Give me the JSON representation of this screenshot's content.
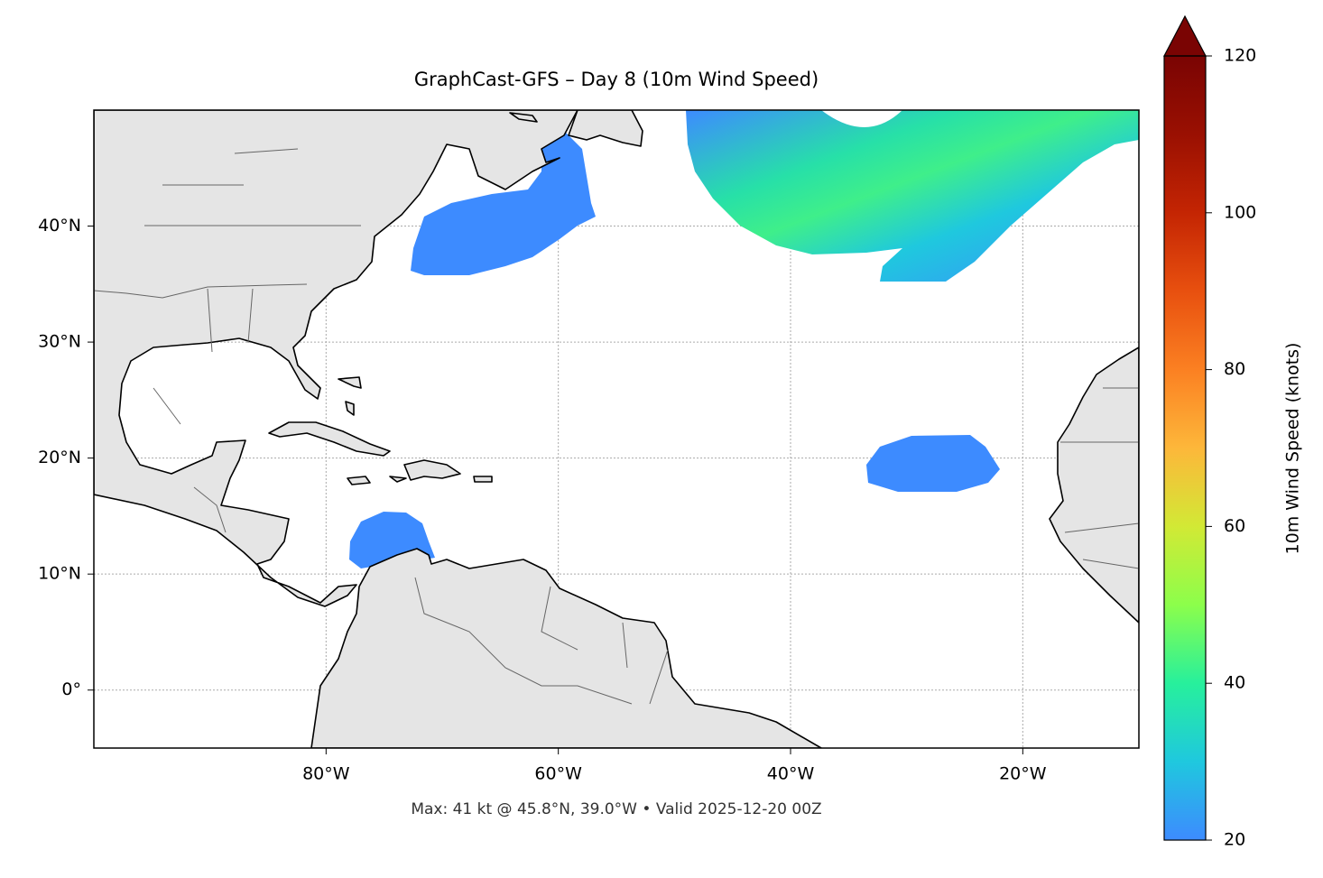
{
  "chart_data": {
    "type": "map",
    "title": "GraphCast-GFS – Day 8 (10m Wind Speed)",
    "footnote": "Max: 41 kt @ 45.8°N, 39.0°W • Valid 2025-12-20 00Z",
    "xlim": [
      -100,
      -10
    ],
    "ylim": [
      -5,
      50
    ],
    "xticks": [
      {
        "value": -80,
        "label": "80°W"
      },
      {
        "value": -60,
        "label": "60°W"
      },
      {
        "value": -40,
        "label": "40°W"
      },
      {
        "value": -20,
        "label": "20°W"
      }
    ],
    "yticks": [
      {
        "value": 0,
        "label": "0°"
      },
      {
        "value": 10,
        "label": "10°N"
      },
      {
        "value": 20,
        "label": "20°N"
      },
      {
        "value": 30,
        "label": "30°N"
      },
      {
        "value": 40,
        "label": "40°N"
      }
    ],
    "grid": true,
    "colorbar": {
      "label": "10m Wind Speed (knots)",
      "lim": [
        20,
        120
      ],
      "ticks": [
        20,
        40,
        60,
        80,
        100,
        120
      ],
      "extend": "max",
      "colors": [
        "#3d8bff",
        "#1fc8de",
        "#27f09c",
        "#8cfe4b",
        "#d2e935",
        "#fdb73a",
        "#fb8022",
        "#e8500f",
        "#c42503",
        "#9a1002",
        "#7a0403"
      ]
    }
  }
}
